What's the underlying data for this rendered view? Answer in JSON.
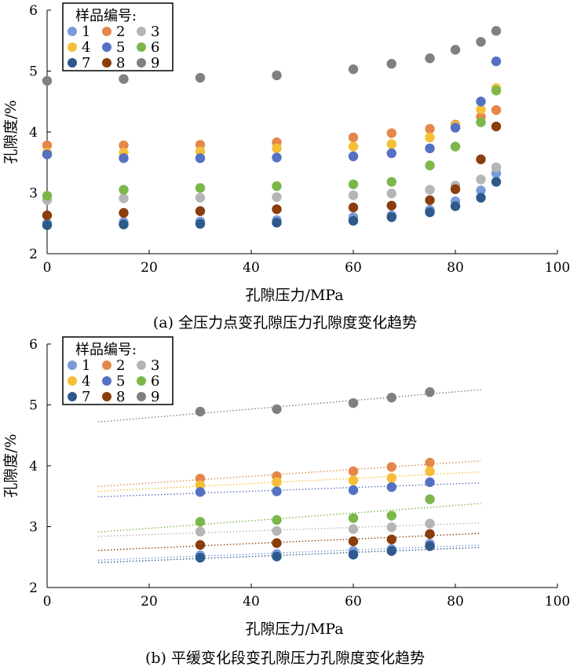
{
  "legend_colors": {
    "1": "#7a9ad8",
    "2": "#e5874a",
    "3": "#b5b5b5",
    "4": "#f5bf37",
    "5": "#5571c3",
    "6": "#7cb74a",
    "7": "#2d5a8a",
    "8": "#8a3d0d",
    "9": "#808080"
  },
  "chart_data": [
    {
      "type": "scatter",
      "title": "",
      "caption": "(a) 全压力点变孔隙压力孔隙度变化趋势",
      "xlabel": "孔隙压力/MPa",
      "ylabel": "孔隙度/%",
      "xlim": [
        0,
        100
      ],
      "ylim": [
        2,
        6
      ],
      "xticks": [
        0,
        20,
        40,
        60,
        80,
        100
      ],
      "yticks": [
        2,
        3,
        4,
        5,
        6
      ],
      "legend_title": "样品编号:",
      "legend_position": "top-left",
      "grid": false,
      "x": [
        0,
        15,
        30,
        45,
        60,
        67.5,
        75,
        80,
        85,
        88
      ],
      "series": [
        {
          "name": "1",
          "values": [
            2.5,
            2.52,
            2.53,
            2.55,
            2.6,
            2.63,
            2.72,
            2.86,
            3.04,
            3.32
          ]
        },
        {
          "name": "2",
          "values": [
            3.78,
            3.78,
            3.79,
            3.83,
            3.91,
            3.98,
            4.05,
            4.12,
            4.25,
            4.36
          ]
        },
        {
          "name": "3",
          "values": [
            2.88,
            2.91,
            2.92,
            2.93,
            2.96,
            2.99,
            3.05,
            3.12,
            3.22,
            3.42
          ]
        },
        {
          "name": "4",
          "values": [
            3.66,
            3.66,
            3.68,
            3.73,
            3.76,
            3.8,
            3.91,
            4.1,
            4.37,
            4.72
          ]
        },
        {
          "name": "5",
          "values": [
            3.63,
            3.57,
            3.57,
            3.58,
            3.6,
            3.65,
            3.73,
            4.07,
            4.5,
            5.16
          ]
        },
        {
          "name": "6",
          "values": [
            2.95,
            3.05,
            3.08,
            3.11,
            3.14,
            3.18,
            3.45,
            3.76,
            4.16,
            4.68
          ]
        },
        {
          "name": "7",
          "values": [
            2.47,
            2.48,
            2.49,
            2.51,
            2.54,
            2.6,
            2.68,
            2.78,
            2.92,
            3.18
          ]
        },
        {
          "name": "8",
          "values": [
            2.63,
            2.67,
            2.7,
            2.73,
            2.76,
            2.79,
            2.88,
            3.06,
            3.55,
            4.09
          ]
        },
        {
          "name": "9",
          "values": [
            4.84,
            4.87,
            4.89,
            4.93,
            5.03,
            5.12,
            5.21,
            5.35,
            5.48,
            5.66
          ]
        }
      ]
    },
    {
      "type": "scatter",
      "title": "",
      "caption": "(b) 平缓变化段变孔隙压力孔隙度变化趋势",
      "xlabel": "孔隙压力/MPa",
      "ylabel": "孔隙度/%",
      "xlim": [
        0,
        100
      ],
      "ylim": [
        2,
        6
      ],
      "xticks": [
        0,
        20,
        40,
        60,
        80,
        100
      ],
      "yticks": [
        2,
        3,
        4,
        5,
        6
      ],
      "legend_title": "样品编号:",
      "legend_position": "top-left",
      "grid": false,
      "trendline_x": [
        10,
        85
      ],
      "x": [
        30,
        45,
        60,
        67.5,
        75
      ],
      "series": [
        {
          "name": "1",
          "values": [
            2.53,
            2.55,
            2.6,
            2.63,
            2.72
          ],
          "trend": [
            2.45,
            2.7
          ]
        },
        {
          "name": "2",
          "values": [
            3.79,
            3.83,
            3.91,
            3.98,
            4.05
          ],
          "trend": [
            3.66,
            4.08
          ]
        },
        {
          "name": "3",
          "values": [
            2.92,
            2.93,
            2.96,
            2.99,
            3.05
          ],
          "trend": [
            2.84,
            3.06
          ]
        },
        {
          "name": "4",
          "values": [
            3.68,
            3.73,
            3.76,
            3.8,
            3.91
          ],
          "trend": [
            3.58,
            3.9
          ]
        },
        {
          "name": "5",
          "values": [
            3.57,
            3.58,
            3.6,
            3.65,
            3.73
          ],
          "trend": [
            3.49,
            3.72
          ]
        },
        {
          "name": "6",
          "values": [
            3.08,
            3.11,
            3.14,
            3.18,
            3.45
          ],
          "trend": [
            2.91,
            3.38
          ]
        },
        {
          "name": "7",
          "values": [
            2.49,
            2.51,
            2.54,
            2.6,
            2.68
          ],
          "trend": [
            2.41,
            2.66
          ]
        },
        {
          "name": "8",
          "values": [
            2.7,
            2.73,
            2.76,
            2.79,
            2.88
          ],
          "trend": [
            2.61,
            2.89
          ]
        },
        {
          "name": "9",
          "values": [
            4.89,
            4.93,
            5.03,
            5.12,
            5.21
          ],
          "trend": [
            4.72,
            5.25
          ]
        }
      ]
    }
  ]
}
